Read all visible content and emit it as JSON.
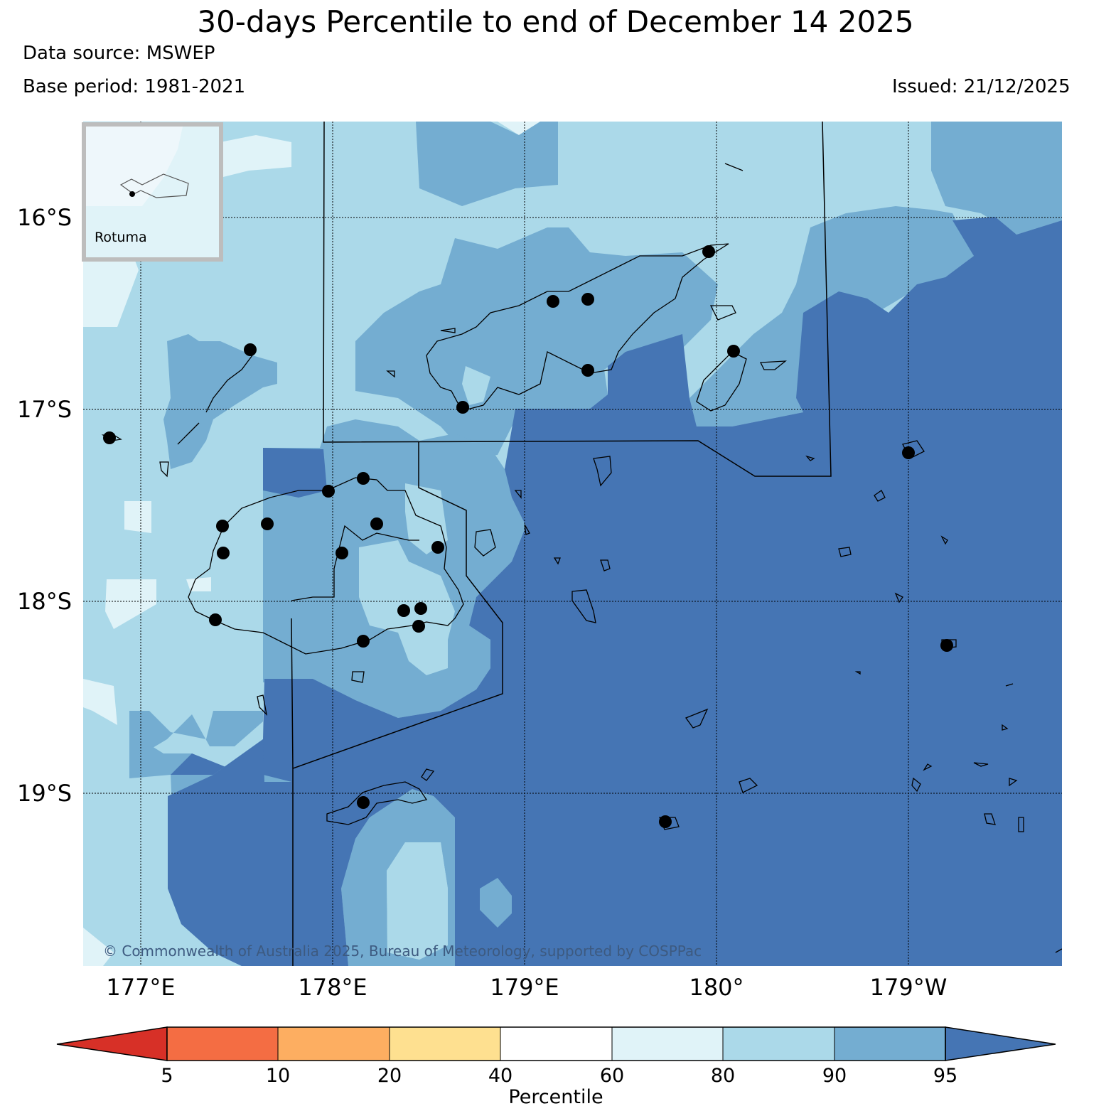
{
  "title": "30-days Percentile to end of December 14 2025",
  "data_source": "Data source: MSWEP",
  "base_period": "Base period: 1981-2021",
  "issued": "Issued: 21/12/2025",
  "lat_labels": [
    "16°S",
    "17°S",
    "18°S",
    "19°S"
  ],
  "lon_labels": [
    "177°E",
    "178°E",
    "179°E",
    "180°",
    "179°W"
  ],
  "inset": {
    "label": "Rotuma"
  },
  "copyright": "© Commonwealth of Australia 2025, Bureau of Meteorology, supported by COSPPac",
  "colorbar": {
    "title": "Percentile",
    "ticks": [
      "5",
      "10",
      "20",
      "40",
      "60",
      "80",
      "90",
      "95"
    ],
    "colors": [
      "#d73027",
      "#f46d43",
      "#fdae61",
      "#fee090",
      "#ffffff",
      "#e0f3f8",
      "#abd9e9",
      "#74add1",
      "#4575b4"
    ]
  }
}
